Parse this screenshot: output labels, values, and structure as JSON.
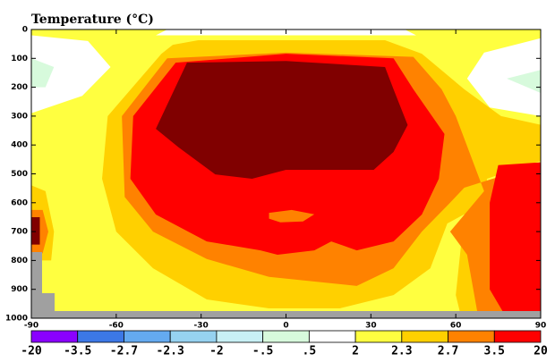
{
  "chart_data": {
    "type": "contour",
    "title": "Temperature (°C)",
    "xlim": [
      -90,
      90
    ],
    "xticks": [
      -90,
      -60,
      -30,
      0,
      30,
      60,
      90
    ],
    "ylim": [
      0,
      1000
    ],
    "yticks": [
      0,
      100,
      200,
      300,
      400,
      500,
      600,
      700,
      800,
      900,
      1000
    ],
    "y_inverted": true,
    "levels": [
      -20,
      -3.5,
      -2.7,
      -2.3,
      -2,
      {
        "value": -0.5,
        "label": "-.5"
      },
      {
        "value": 0.5,
        "label": ".5"
      },
      2,
      2.3,
      2.7,
      3.5,
      20
    ],
    "colors": [
      "#8a00ff",
      "#3c78e6",
      "#64aaf0",
      "#96d2f0",
      "#c8f0f5",
      "#d7fadc",
      "#ffffff",
      "#ffff40",
      "#ffd000",
      "#ff8200",
      "#ff0000",
      "#800000"
    ],
    "background_level": 7,
    "regions": [
      {
        "level": 8,
        "points": [
          [
            -44,
            84
          ],
          [
            -63,
            300
          ],
          [
            -65,
            517
          ],
          [
            -60,
            700
          ],
          [
            -47,
            827
          ],
          [
            -28,
            935
          ],
          [
            -6,
            966
          ],
          [
            19,
            966
          ],
          [
            38,
            920
          ],
          [
            51,
            827
          ],
          [
            57,
            672
          ],
          [
            63,
            640
          ],
          [
            60,
            920
          ],
          [
            62,
            1000
          ],
          [
            70,
            1000
          ],
          [
            71,
            517
          ],
          [
            90,
            455
          ],
          [
            90,
            330
          ],
          [
            76,
            300
          ],
          [
            63,
            207
          ],
          [
            48,
            84
          ],
          [
            35,
            37
          ],
          [
            -31,
            37
          ],
          [
            -40,
            53
          ]
        ]
      },
      {
        "level": 8,
        "points": [
          [
            -90,
            540
          ],
          [
            -85,
            560
          ],
          [
            -82,
            700
          ],
          [
            -83,
            800
          ],
          [
            -90,
            800
          ]
        ]
      },
      {
        "level": 9,
        "points": [
          [
            -42,
            100
          ],
          [
            -58,
            300
          ],
          [
            -57,
            580
          ],
          [
            -47,
            700
          ],
          [
            -28,
            795
          ],
          [
            -6,
            857
          ],
          [
            25,
            888
          ],
          [
            38,
            827
          ],
          [
            48,
            700
          ],
          [
            57,
            610
          ],
          [
            63,
            548
          ],
          [
            73,
            517
          ],
          [
            90,
            470
          ],
          [
            90,
            1000
          ],
          [
            68,
            1000
          ],
          [
            64,
            780
          ],
          [
            58,
            700
          ],
          [
            70,
            560
          ],
          [
            60,
            300
          ],
          [
            55,
            207
          ],
          [
            45,
            95
          ],
          [
            0,
            80
          ]
        ]
      },
      {
        "level": 9,
        "points": [
          [
            -90,
            625
          ],
          [
            -86,
            625
          ],
          [
            -84,
            700
          ],
          [
            -86,
            775
          ],
          [
            -90,
            775
          ]
        ]
      },
      {
        "level": 10,
        "points": [
          [
            -39,
            115
          ],
          [
            -54,
            300
          ],
          [
            -55,
            517
          ],
          [
            -46,
            641
          ],
          [
            -28,
            734
          ],
          [
            -9,
            765
          ],
          [
            -3,
            780
          ],
          [
            10,
            765
          ],
          [
            16,
            734
          ],
          [
            25,
            765
          ],
          [
            38,
            734
          ],
          [
            48,
            641
          ],
          [
            54,
            517
          ],
          [
            56,
            362
          ],
          [
            45,
            207
          ],
          [
            38,
            100
          ],
          [
            0,
            84
          ]
        ]
      },
      {
        "level": 9,
        "points": [
          [
            -6,
            635
          ],
          [
            2,
            625
          ],
          [
            10,
            640
          ],
          [
            6,
            665
          ],
          [
            -2,
            668
          ],
          [
            -6,
            655
          ]
        ]
      },
      {
        "level": 10,
        "points": [
          [
            75,
            470
          ],
          [
            90,
            460
          ],
          [
            90,
            1000
          ],
          [
            78,
            1000
          ],
          [
            72,
            900
          ],
          [
            72,
            600
          ]
        ]
      },
      {
        "level": 11,
        "points": [
          [
            -35,
            115
          ],
          [
            -46,
            344
          ],
          [
            -38,
            408
          ],
          [
            -25,
            502
          ],
          [
            -12,
            517
          ],
          [
            0,
            486
          ],
          [
            31,
            486
          ],
          [
            38,
            424
          ],
          [
            43,
            331
          ],
          [
            38,
            207
          ],
          [
            35,
            130
          ],
          [
            0,
            109
          ]
        ]
      },
      {
        "level": 11,
        "points": [
          [
            -90,
            650
          ],
          [
            -87,
            650
          ],
          [
            -87,
            745
          ],
          [
            -90,
            745
          ]
        ]
      },
      {
        "level": 6,
        "points": [
          [
            -90,
            20
          ],
          [
            -70,
            40
          ],
          [
            -62,
            130
          ],
          [
            -72,
            230
          ],
          [
            -90,
            290
          ]
        ]
      },
      {
        "level": 6,
        "points": [
          [
            -42,
            0
          ],
          [
            42,
            0
          ],
          [
            46,
            20
          ],
          [
            -46,
            20
          ]
        ]
      },
      {
        "level": 6,
        "points": [
          [
            90,
            30
          ],
          [
            70,
            80
          ],
          [
            64,
            170
          ],
          [
            72,
            270
          ],
          [
            90,
            300
          ]
        ]
      },
      {
        "level": 5,
        "points": [
          [
            -90,
            100
          ],
          [
            -82,
            130
          ],
          [
            -85,
            200
          ],
          [
            -90,
            200
          ]
        ]
      },
      {
        "level": 5,
        "points": [
          [
            90,
            140
          ],
          [
            78,
            170
          ],
          [
            90,
            220
          ]
        ]
      }
    ]
  }
}
